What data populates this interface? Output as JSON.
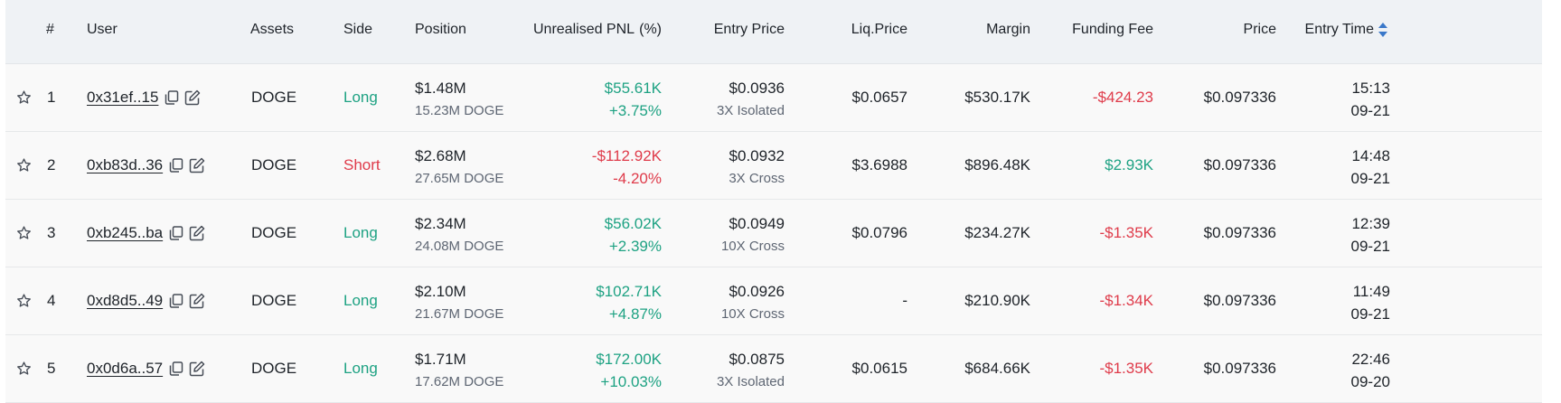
{
  "header": {
    "index": "#",
    "user": "User",
    "assets": "Assets",
    "side": "Side",
    "position": "Position",
    "unrealised_pnl": "Unrealised PNL",
    "pct": "(%)",
    "entry_price": "Entry Price",
    "liq_price": "Liq.Price",
    "margin": "Margin",
    "funding_fee": "Funding Fee",
    "price": "Price",
    "entry_time": "Entry Time"
  },
  "colors": {
    "positive": "#1ea283",
    "negative": "#df3b4a",
    "header_bg": "#eff2f5",
    "row_bg": "#f9f9f9",
    "sort_active": "#3a78c9"
  },
  "rows": [
    {
      "index": "1",
      "user": "0x31ef..15",
      "asset": "DOGE",
      "side": "Long",
      "side_type": "long",
      "position_usd": "$1.48M",
      "position_qty": "15.23M DOGE",
      "pnl": "$55.61K",
      "pnl_pct": "+3.75%",
      "pnl_type": "positive",
      "entry_price": "$0.0936",
      "leverage": "3X Isolated",
      "liq_price": "$0.0657",
      "margin": "$530.17K",
      "funding_fee": "-$424.23",
      "funding_type": "negative",
      "price": "$0.097336",
      "entry_time": "15:13",
      "entry_date": "09-21"
    },
    {
      "index": "2",
      "user": "0xb83d..36",
      "asset": "DOGE",
      "side": "Short",
      "side_type": "short",
      "position_usd": "$2.68M",
      "position_qty": "27.65M DOGE",
      "pnl": "-$112.92K",
      "pnl_pct": "-4.20%",
      "pnl_type": "negative",
      "entry_price": "$0.0932",
      "leverage": "3X Cross",
      "liq_price": "$3.6988",
      "margin": "$896.48K",
      "funding_fee": "$2.93K",
      "funding_type": "positive",
      "price": "$0.097336",
      "entry_time": "14:48",
      "entry_date": "09-21"
    },
    {
      "index": "3",
      "user": "0xb245..ba",
      "asset": "DOGE",
      "side": "Long",
      "side_type": "long",
      "position_usd": "$2.34M",
      "position_qty": "24.08M DOGE",
      "pnl": "$56.02K",
      "pnl_pct": "+2.39%",
      "pnl_type": "positive",
      "entry_price": "$0.0949",
      "leverage": "10X Cross",
      "liq_price": "$0.0796",
      "margin": "$234.27K",
      "funding_fee": "-$1.35K",
      "funding_type": "negative",
      "price": "$0.097336",
      "entry_time": "12:39",
      "entry_date": "09-21"
    },
    {
      "index": "4",
      "user": "0xd8d5..49",
      "asset": "DOGE",
      "side": "Long",
      "side_type": "long",
      "position_usd": "$2.10M",
      "position_qty": "21.67M DOGE",
      "pnl": "$102.71K",
      "pnl_pct": "+4.87%",
      "pnl_type": "positive",
      "entry_price": "$0.0926",
      "leverage": "10X Cross",
      "liq_price": "-",
      "margin": "$210.90K",
      "funding_fee": "-$1.34K",
      "funding_type": "negative",
      "price": "$0.097336",
      "entry_time": "11:49",
      "entry_date": "09-21"
    },
    {
      "index": "5",
      "user": "0x0d6a..57",
      "asset": "DOGE",
      "side": "Long",
      "side_type": "long",
      "position_usd": "$1.71M",
      "position_qty": "17.62M DOGE",
      "pnl": "$172.00K",
      "pnl_pct": "+10.03%",
      "pnl_type": "positive",
      "entry_price": "$0.0875",
      "leverage": "3X Isolated",
      "liq_price": "$0.0615",
      "margin": "$684.66K",
      "funding_fee": "-$1.35K",
      "funding_type": "negative",
      "price": "$0.097336",
      "entry_time": "22:46",
      "entry_date": "09-20"
    }
  ],
  "icons": {
    "favorite": "star-icon",
    "copy": "copy-icon",
    "edit": "edit-icon",
    "sort": "sort-arrows-icon"
  }
}
